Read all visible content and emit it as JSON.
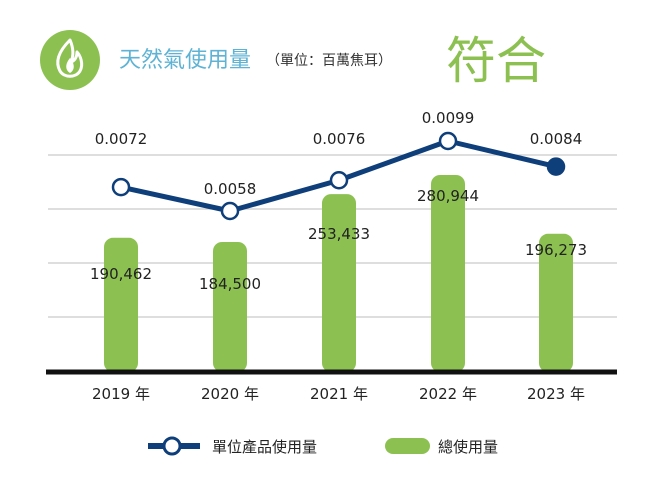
{
  "header": {
    "icon": "flame-icon",
    "title": "天然氣使用量",
    "unit": "（單位：百萬焦耳）",
    "status": "符合"
  },
  "colors": {
    "icon_bg": "#8cc152",
    "title": "#5eb3d4",
    "unit_text": "#333333",
    "status": "#8cc152",
    "bar": "#8cc152",
    "line": "#0e3f7a",
    "grid": "#c9c9c9",
    "axis": "#111111"
  },
  "chart_data": {
    "type": "bar",
    "categories": [
      "2019 年",
      "2020 年",
      "2021 年",
      "2022 年",
      "2023 年"
    ],
    "series": [
      {
        "name": "總使用量",
        "type": "bar",
        "values": [
          190462,
          184500,
          253433,
          280944,
          196273
        ],
        "labels": [
          "190,462",
          "184,500",
          "253,433",
          "280,944",
          "196,273"
        ]
      },
      {
        "name": "單位產品使用量",
        "type": "line",
        "values": [
          0.0072,
          0.0058,
          0.0076,
          0.0099,
          0.0084
        ],
        "labels": [
          "0.0072",
          "0.0058",
          "0.0076",
          "0.0099",
          "0.0084"
        ]
      }
    ],
    "grid": true,
    "legend_position": "bottom",
    "title": "",
    "xlabel": "",
    "ylabel": ""
  },
  "legend": {
    "line_label": "單位產品使用量",
    "bar_label": "總使用量"
  }
}
